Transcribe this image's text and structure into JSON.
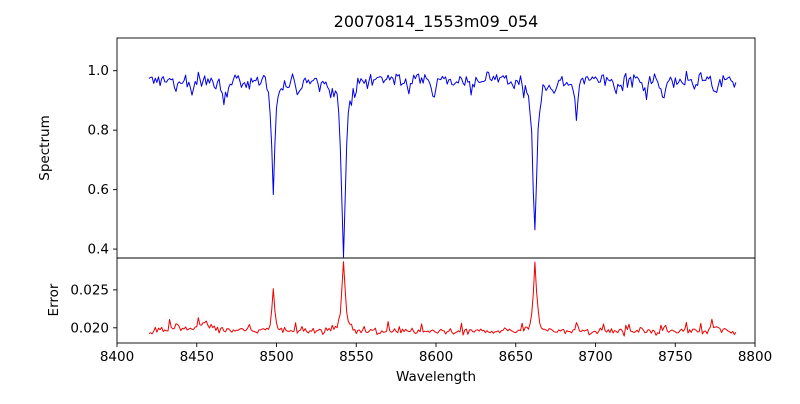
{
  "figure": {
    "background": "#ffffff"
  },
  "chart_data": {
    "type": "line",
    "title": "20070814_1553m09_054",
    "xlabel": "Wavelength",
    "grid": false,
    "legend": null,
    "x_range": [
      8400,
      8800
    ],
    "x_data_range": [
      8420,
      8788
    ],
    "x_step": 1,
    "x_ticks": [
      8400,
      8450,
      8500,
      8550,
      8600,
      8650,
      8700,
      8750,
      8800
    ],
    "x_tick_labels": [
      "8400",
      "8450",
      "8500",
      "8550",
      "8600",
      "8650",
      "8700",
      "8750",
      "8800"
    ],
    "panels": [
      {
        "name": "spectrum",
        "ylabel": "Spectrum",
        "color": "#0000ee",
        "ylim": [
          0.37,
          1.11
        ],
        "y_ticks": [
          0.4,
          0.6,
          0.8,
          1.0
        ],
        "y_tick_labels": [
          "0.4",
          "0.6",
          "0.8",
          "1.0"
        ],
        "baseline": 0.975,
        "noise_sigma": 0.011,
        "spike_prob": 0.07,
        "spike_scale": -0.018,
        "features": [
          {
            "center": 8498,
            "amp": -0.385,
            "width": 1.2
          },
          {
            "center": 8542,
            "amp": -0.575,
            "width": 1.6
          },
          {
            "center": 8662,
            "amp": -0.52,
            "width": 1.5
          },
          {
            "center": 8688,
            "amp": -0.155,
            "width": 1.0
          },
          {
            "center": 8437,
            "amp": -0.045,
            "width": 1.4
          },
          {
            "center": 8447,
            "amp": -0.05,
            "width": 1.2
          },
          {
            "center": 8467,
            "amp": -0.07,
            "width": 1.6
          },
          {
            "center": 8481,
            "amp": -0.035,
            "width": 1.2
          },
          {
            "center": 8514,
            "amp": -0.055,
            "width": 1.3
          },
          {
            "center": 8527,
            "amp": -0.035,
            "width": 1.1
          },
          {
            "center": 8583,
            "amp": -0.035,
            "width": 1.2
          },
          {
            "center": 8598,
            "amp": -0.04,
            "width": 1.3
          },
          {
            "center": 8611,
            "amp": -0.03,
            "width": 1.1
          },
          {
            "center": 8622,
            "amp": -0.04,
            "width": 1.2
          },
          {
            "center": 8648,
            "amp": -0.035,
            "width": 1.2
          },
          {
            "center": 8674,
            "amp": -0.05,
            "width": 1.3
          },
          {
            "center": 8713,
            "amp": -0.04,
            "width": 1.2
          },
          {
            "center": 8730,
            "amp": -0.035,
            "width": 1.1
          },
          {
            "center": 8742,
            "amp": -0.05,
            "width": 1.3
          },
          {
            "center": 8762,
            "amp": -0.04,
            "width": 1.2
          },
          {
            "center": 8776,
            "amp": -0.045,
            "width": 1.2
          }
        ]
      },
      {
        "name": "error",
        "ylabel": "Error",
        "color": "#ee0000",
        "ylim": [
          0.018,
          0.0292
        ],
        "y_ticks": [
          0.02,
          0.025
        ],
        "y_tick_labels": [
          "0.020",
          "0.025"
        ],
        "baseline": 0.0195,
        "noise_sigma": 0.00022,
        "spike_prob": 0.05,
        "spike_scale": 0.0006,
        "features": [
          {
            "center": 8498,
            "amp": 0.0055,
            "width": 1.0
          },
          {
            "center": 8542,
            "amp": 0.0093,
            "width": 1.2
          },
          {
            "center": 8662,
            "amp": 0.009,
            "width": 1.1
          },
          {
            "center": 8455,
            "amp": 0.0012,
            "width": 5.0
          },
          {
            "center": 8437,
            "amp": 0.0007,
            "width": 2.0
          },
          {
            "center": 8688,
            "amp": 0.0009,
            "width": 1.0
          },
          {
            "center": 8742,
            "amp": 0.0005,
            "width": 2.0
          },
          {
            "center": 8776,
            "amp": 0.0006,
            "width": 2.0
          }
        ]
      }
    ]
  }
}
